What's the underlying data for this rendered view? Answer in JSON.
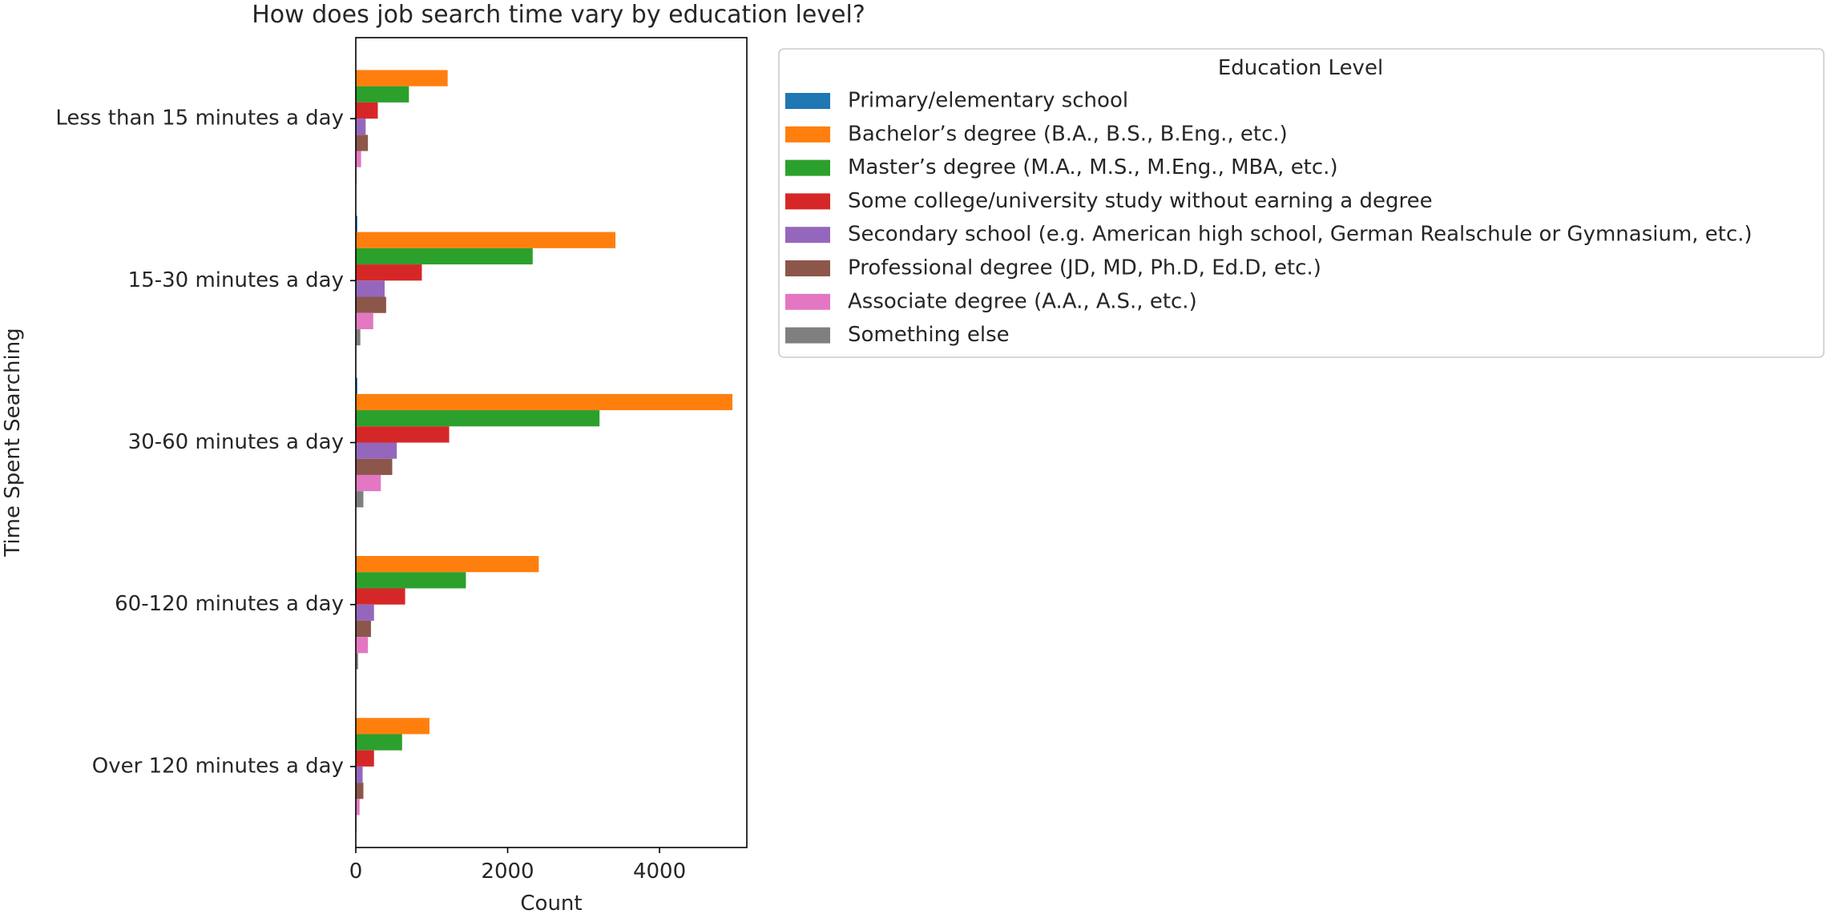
{
  "chart_data": {
    "type": "bar",
    "orientation": "horizontal",
    "title": "How does job search time vary by education level?",
    "xlabel": "Count",
    "ylabel": "Time Spent Searching",
    "xlim": [
      0,
      5150
    ],
    "xticks": [
      0,
      2000,
      4000
    ],
    "xtick_labels": [
      "0",
      "2000",
      "4000"
    ],
    "grid": false,
    "legend": {
      "title": "Education Level",
      "placement": "outside right, top"
    },
    "categories": [
      "Less than 15 minutes a day",
      "15-30 minutes a day",
      "30-60 minutes a day",
      "60-120 minutes a day",
      "Over 120 minutes a day"
    ],
    "series": [
      {
        "name": "Primary/elementary school",
        "color": "#1f77b4",
        "values": [
          5,
          20,
          20,
          5,
          5
        ]
      },
      {
        "name": "Bachelor’s degree (B.A., B.S., B.Eng., etc.)",
        "color": "#ff7f0e",
        "values": [
          1210,
          3420,
          4960,
          2410,
          970
        ]
      },
      {
        "name": "Master’s degree (M.A., M.S., M.Eng., MBA, etc.)",
        "color": "#2ca02c",
        "values": [
          700,
          2330,
          3210,
          1450,
          610
        ]
      },
      {
        "name": "Some college/university study without earning a degree",
        "color": "#d62728",
        "values": [
          290,
          870,
          1230,
          650,
          240
        ]
      },
      {
        "name": "Secondary school (e.g. American high school, German Realschule or Gymnasium, etc.)",
        "color": "#9467bd",
        "values": [
          130,
          380,
          540,
          240,
          90
        ]
      },
      {
        "name": "Professional degree (JD, MD, Ph.D, Ed.D, etc.)",
        "color": "#8c564b",
        "values": [
          160,
          400,
          480,
          200,
          100
        ]
      },
      {
        "name": "Associate degree (A.A., A.S., etc.)",
        "color": "#e377c2",
        "values": [
          70,
          230,
          330,
          160,
          50
        ]
      },
      {
        "name": "Something else",
        "color": "#7f7f7f",
        "values": [
          10,
          60,
          100,
          30,
          10
        ]
      }
    ]
  }
}
